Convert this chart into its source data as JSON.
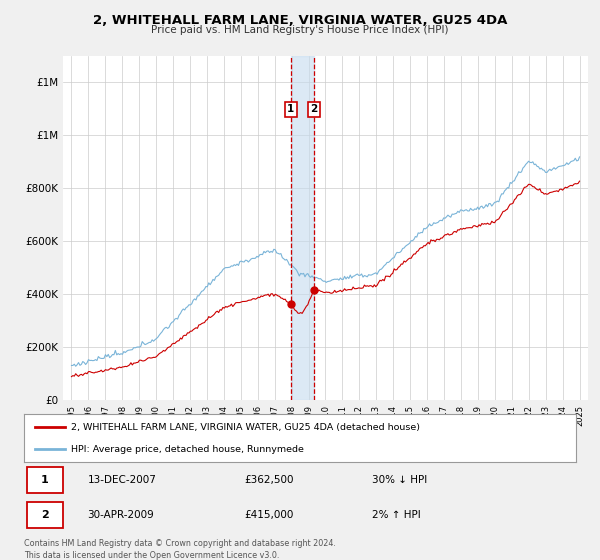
{
  "title": "2, WHITEHALL FARM LANE, VIRGINIA WATER, GU25 4DA",
  "subtitle": "Price paid vs. HM Land Registry's House Price Index (HPI)",
  "hpi_label": "HPI: Average price, detached house, Runnymede",
  "property_label": "2, WHITEHALL FARM LANE, VIRGINIA WATER, GU25 4DA (detached house)",
  "hpi_color": "#7ab4d8",
  "property_color": "#cc0000",
  "marker_color": "#cc0000",
  "vline_color": "#cc0000",
  "vline_shade_color": "#c6dbef",
  "ylim": [
    0,
    1300000
  ],
  "yticks": [
    0,
    200000,
    400000,
    600000,
    800000,
    1000000,
    1200000
  ],
  "transaction1": {
    "date_num": 2007.95,
    "price": 362500,
    "label": "1",
    "date_str": "13-DEC-2007",
    "price_str": "£362,500",
    "note": "30% ↓ HPI"
  },
  "transaction2": {
    "date_num": 2009.33,
    "price": 415000,
    "label": "2",
    "date_str": "30-APR-2009",
    "price_str": "£415,000",
    "note": "2% ↑ HPI"
  },
  "footer": "Contains HM Land Registry data © Crown copyright and database right 2024.\nThis data is licensed under the Open Government Licence v3.0.",
  "bg_color": "#f0f0f0",
  "plot_bg_color": "#ffffff",
  "grid_color": "#cccccc"
}
